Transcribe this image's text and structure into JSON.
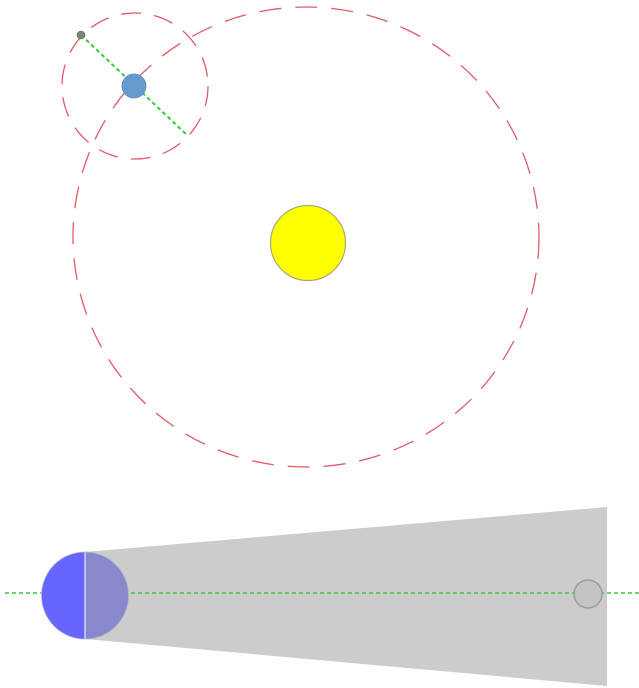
{
  "colors": {
    "background": "#ffffff",
    "orbit_dash": "#e05a64",
    "sun_fill": "#ffff00",
    "sun_stroke": "#a8a87a",
    "earth_fill": "#6699cc",
    "moon_fill": "#778877",
    "alignment_line": "#33cc33",
    "earth_day_side": "#6666ff",
    "earth_night_side": "#8888cc",
    "umbra_cone": "#cccccc",
    "moon_far_fill": "#c4c4c4",
    "moon_far_stroke": "#999999"
  },
  "icons": {
    "sun": "sun-icon",
    "earth": "earth-icon",
    "moon": "moon-icon"
  }
}
